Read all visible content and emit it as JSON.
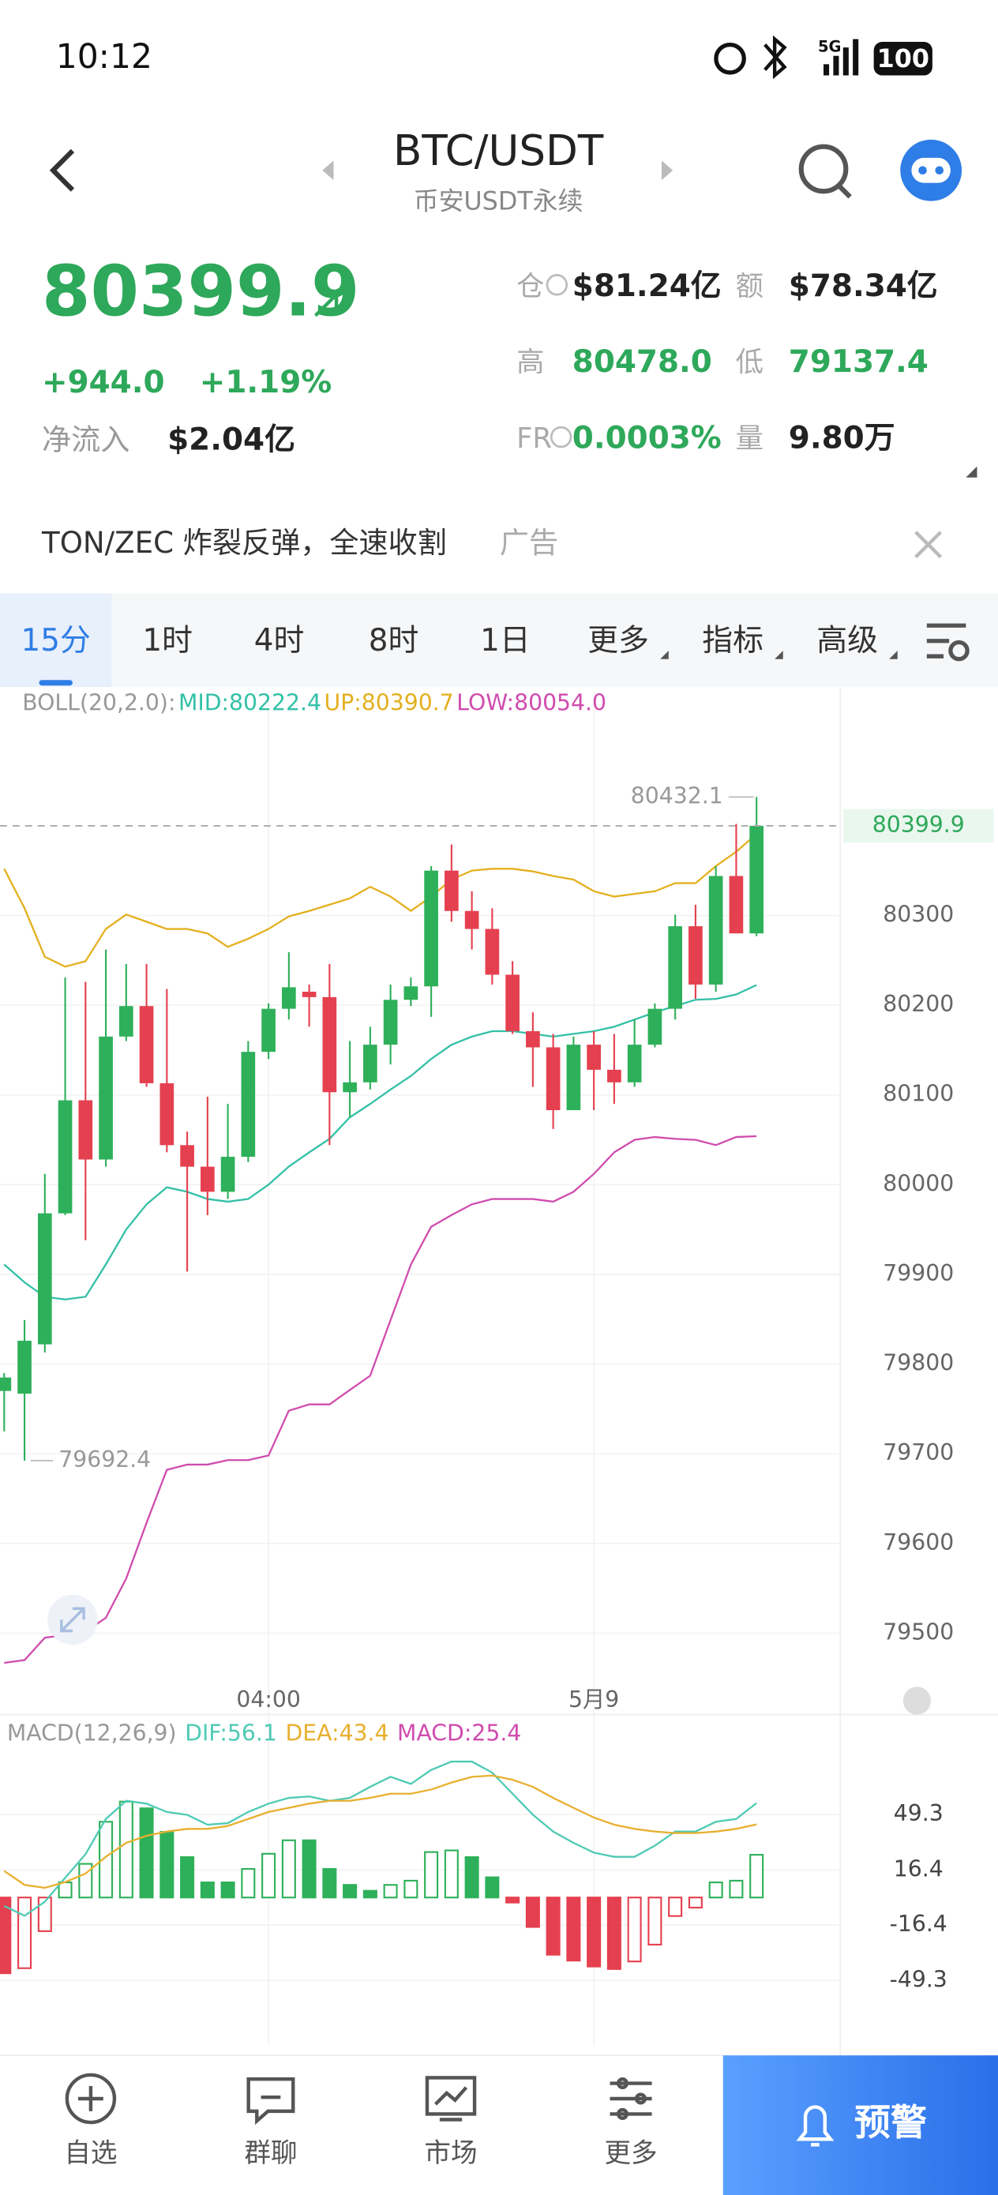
{
  "status_bar": {
    "time": "10:12",
    "network": "5G",
    "battery": "100"
  },
  "header": {
    "symbol": "BTC/USDT",
    "subtitle": "币安USDT永续"
  },
  "ticker": {
    "price": "80399.9",
    "change": "+944.0",
    "change_pct": "+1.19%",
    "net_inflow_label": "净流入",
    "net_inflow": "$2.04亿",
    "stats": [
      {
        "label": "仓",
        "value": "$81.24亿",
        "color": "#222222"
      },
      {
        "label": "额",
        "value": "$78.34亿",
        "color": "#222222"
      },
      {
        "label": "高",
        "value": "80478.0",
        "color": "#2ea85a"
      },
      {
        "label": "低",
        "value": "79137.4",
        "color": "#2ea85a"
      },
      {
        "label": "FR",
        "value": "0.0003%",
        "color": "#2ea85a"
      },
      {
        "label": "量",
        "value": "9.80万",
        "color": "#222222"
      }
    ]
  },
  "ad": {
    "text": "TON/ZEC 炸裂反弹，全速收割",
    "tag": "广告"
  },
  "tabs": [
    {
      "label": "15分",
      "active": true
    },
    {
      "label": "1时"
    },
    {
      "label": "4时"
    },
    {
      "label": "8时"
    },
    {
      "label": "1日"
    },
    {
      "label": "更多",
      "dropdown": true
    },
    {
      "label": "指标",
      "dropdown": true
    },
    {
      "label": "高级",
      "dropdown": true
    }
  ],
  "chart_data": [
    {
      "type": "candlestick",
      "legend_title": "BOLL(20,2.0):",
      "categories": [
        null,
        null,
        null,
        null,
        null,
        null,
        null,
        null,
        null,
        null,
        null,
        null,
        null,
        "04:00",
        null,
        null,
        null,
        null,
        null,
        null,
        null,
        null,
        null,
        null,
        null,
        null,
        null,
        null,
        null,
        "5月9",
        null,
        null,
        null,
        null,
        null,
        null,
        null,
        null
      ],
      "open": [
        79770,
        79767,
        79822,
        79968,
        80094,
        80028,
        80165,
        80199,
        80113,
        80044,
        80020,
        79992,
        80031,
        80148,
        80196,
        80215,
        80209,
        80103,
        80114,
        80156,
        80206,
        80221,
        80350,
        80305,
        80285,
        80234,
        80171,
        80153,
        80083,
        80156,
        80128,
        80114,
        80156,
        80196,
        80288,
        80223,
        80344,
        80280
      ],
      "close": [
        79785,
        79826,
        79968,
        80094,
        80028,
        80165,
        80199,
        80113,
        80044,
        80020,
        79992,
        80031,
        80148,
        80196,
        80220,
        80209,
        80103,
        80114,
        80156,
        80206,
        80221,
        80350,
        80305,
        80285,
        80234,
        80171,
        80153,
        80083,
        80156,
        80128,
        80114,
        80156,
        80196,
        80288,
        80223,
        80344,
        80280,
        80399.9
      ],
      "high": [
        79790,
        79849,
        80012,
        80231,
        80226,
        80262,
        80246,
        80246,
        80218,
        80059,
        80098,
        80090,
        80160,
        80202,
        80259,
        80223,
        80246,
        80160,
        80176,
        80223,
        80231,
        80355,
        80379,
        80327,
        80308,
        80249,
        80192,
        80168,
        80165,
        80171,
        80168,
        80184,
        80202,
        80301,
        80312,
        80355,
        80402,
        80432.1
      ],
      "low": [
        79725,
        79692.4,
        79813,
        79966,
        79938,
        80020,
        80160,
        80109,
        80036,
        79903,
        79966,
        79984,
        80025,
        80140,
        80184,
        80176,
        80044,
        80075,
        80106,
        80134,
        80199,
        80187,
        80293,
        80262,
        80223,
        80168,
        80109,
        80062,
        80083,
        80083,
        80090,
        80109,
        80153,
        80184,
        80207,
        80215,
        80280,
        80277
      ],
      "up_color": "#2eb05a",
      "down_color": "#e5404f",
      "series": [
        {
          "name": "MID:80222.4",
          "color": "#33c0a6",
          "values": [
            79911,
            79891,
            79875,
            79872,
            79875,
            79911,
            79950,
            79978,
            79997,
            79992,
            79984,
            79981,
            79984,
            80000,
            80020,
            80036,
            80051,
            80075,
            80090,
            80106,
            80121,
            80140,
            80156,
            80165,
            80171,
            80171,
            80168,
            80165,
            80168,
            80171,
            80176,
            80184,
            80192,
            80199,
            80206,
            80207,
            80212,
            80222.4
          ]
        },
        {
          "name": "UP:80390.7",
          "color": "#e4b020",
          "values": [
            80352,
            80308,
            80254,
            80243,
            80249,
            80285,
            80301,
            80293,
            80285,
            80285,
            80280,
            80265,
            80274,
            80285,
            80299,
            80305,
            80312,
            80319,
            80332,
            80321,
            80305,
            80321,
            80340,
            80350,
            80352,
            80352,
            80349,
            80344,
            80340,
            80327,
            80321,
            80324,
            80327,
            80336,
            80336,
            80355,
            80371,
            80390.7
          ]
        },
        {
          "name": "LOW:80054.0",
          "color": "#d04cae",
          "values": [
            79467,
            79470,
            79495,
            79498,
            79502,
            79517,
            79561,
            79623,
            79682,
            79688,
            79688,
            79693,
            79693,
            79698,
            79748,
            79755,
            79755,
            79771,
            79787,
            79849,
            79911,
            79953,
            79966,
            79978,
            79984,
            79984,
            79984,
            79981,
            79992,
            80012,
            80036,
            80050,
            80053,
            80051,
            80050,
            80044,
            80053,
            80054.0
          ]
        }
      ],
      "last_price": 80399.9,
      "high_label": 80432.1,
      "low_label": 79692.4,
      "ylim": [
        79445,
        80550
      ],
      "yticks": [
        79500,
        79600,
        79700,
        79800,
        79900,
        80000,
        80100,
        80200,
        80300
      ],
      "grid": true
    },
    {
      "type": "macd",
      "legend_title": "MACD(12,26,9)",
      "series": [
        {
          "name": "DIF:56.1",
          "color": "#4fcab4",
          "values": [
            -5,
            -10.8,
            -2.5,
            11.7,
            25.8,
            46.7,
            57.5,
            55.8,
            50.8,
            49.2,
            43.3,
            44.2,
            50.8,
            55.8,
            59.2,
            60,
            57.5,
            59.2,
            65.8,
            71.7,
            67.5,
            75.8,
            80.8,
            80.8,
            74.2,
            61.7,
            49.2,
            39.2,
            32.5,
            26.7,
            24.2,
            24.2,
            30.8,
            39.2,
            39.2,
            45,
            46.7,
            56.1
          ]
        },
        {
          "name": "DEA:43.4",
          "color": "#e8b030",
          "values": [
            15.8,
            7.5,
            5.8,
            9.2,
            14.2,
            24.2,
            32.5,
            36.7,
            39.2,
            40.8,
            40.8,
            42.5,
            46.7,
            50.8,
            53.3,
            55.8,
            57.5,
            57.5,
            59.2,
            61.7,
            61.7,
            64.2,
            68.3,
            71.7,
            72.5,
            70,
            65.8,
            59.2,
            53.3,
            47.5,
            43.3,
            40.8,
            39.2,
            38.3,
            38.3,
            39.2,
            40.8,
            43.4
          ]
        },
        {
          "name": "MACD:25.4",
          "color": "#d04cae",
          "values": [
            -45,
            -42,
            -20,
            9,
            20,
            45,
            57,
            53,
            39,
            24,
            9,
            9,
            17,
            26,
            34,
            34,
            17,
            7.5,
            4,
            7.5,
            10,
            27,
            28,
            24,
            12,
            -3,
            -17.5,
            -34,
            -37.5,
            -41,
            -42.5,
            -38,
            -28,
            -11,
            -6,
            9,
            10,
            25.4
          ]
        }
      ],
      "up_color": "#2eb05a",
      "down_color": "#e5404f",
      "ylim": [
        -88,
        107
      ],
      "yticks": [
        49.3,
        16.4,
        -16.4,
        -49.3
      ],
      "grid": true
    }
  ],
  "nav": [
    "自选",
    "群聊",
    "市场",
    "更多"
  ],
  "alert": "预警"
}
